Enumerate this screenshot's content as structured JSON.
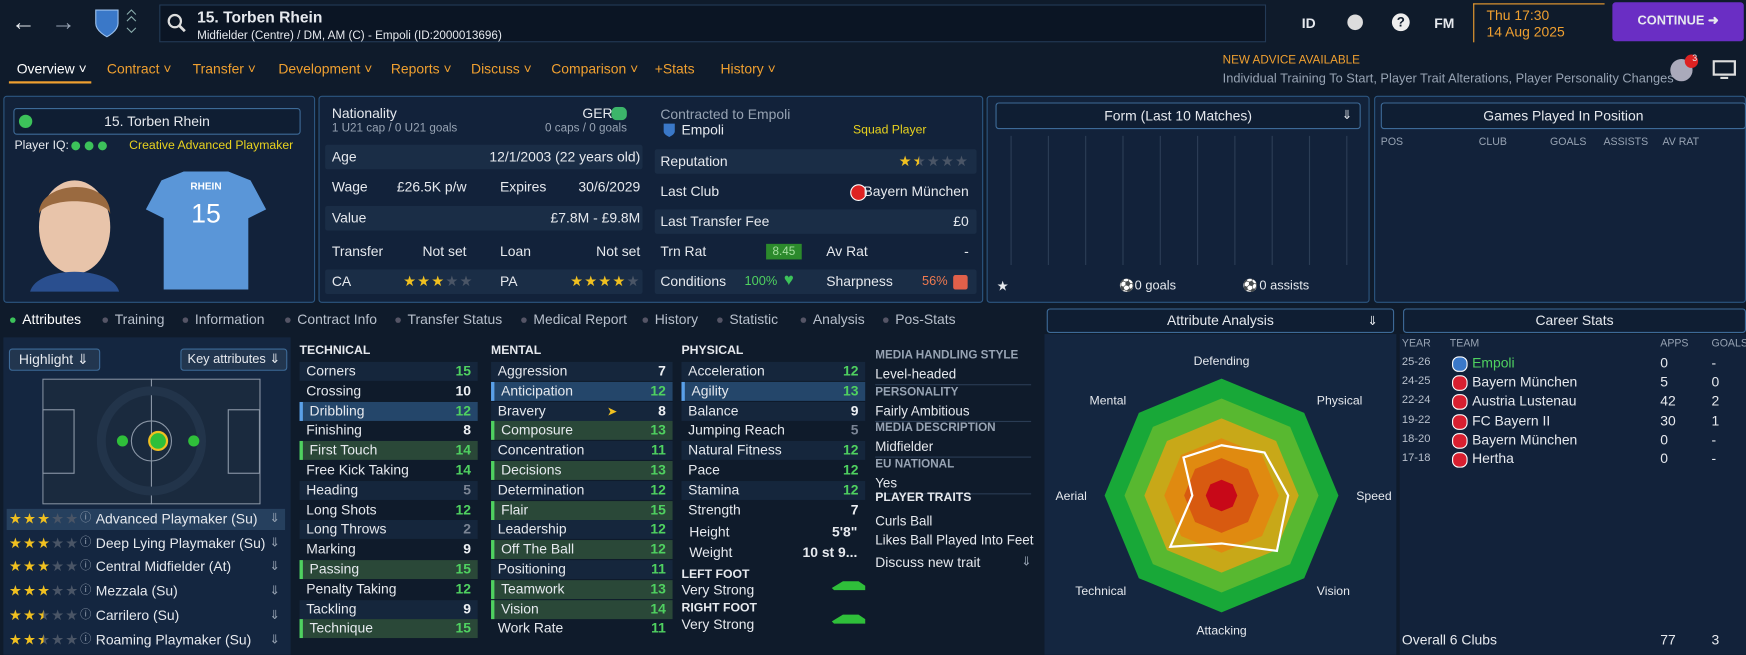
{
  "header": {
    "title": "15. Torben Rhein",
    "subtitle": "Midfielder (Centre) / DM, AM (C) - Empoli (ID:2000013696)",
    "id_button": "ID",
    "fm_button": "FM",
    "time": "Thu 17:30",
    "date": "14 Aug 2025",
    "continue": "CONTINUE",
    "notifications": 3
  },
  "tabs": [
    "Overview",
    "Contract",
    "Transfer",
    "Development",
    "Reports",
    "Discuss",
    "Comparison",
    "+Stats",
    "History"
  ],
  "advice": {
    "title": "NEW ADVICE AVAILABLE",
    "text": "Individual Training To Start, Player Trait Alterations, Player Personality Changes"
  },
  "profile": {
    "name": "15. Torben Rhein",
    "iq_label": "Player IQ:",
    "role": "Creative Advanced Playmaker",
    "shirt_name": "RHEIN",
    "shirt_number": 15
  },
  "details": {
    "nationality_label": "Nationality",
    "nationality": "GER",
    "youth_caps": "1 U21 cap / 0 U21 goals",
    "caps": "0 caps / 0 goals",
    "age_label": "Age",
    "age": "12/1/2003 (22 years old)",
    "wage_label": "Wage",
    "wage": "£26.5K p/w",
    "expires_label": "Expires",
    "expires": "30/6/2029",
    "value_label": "Value",
    "value": "£7.8M - £9.8M",
    "transfer_label": "Transfer",
    "transfer": "Not set",
    "loan_label": "Loan",
    "loan": "Not set",
    "ca_label": "CA",
    "ca_stars": 3,
    "pa_label": "PA",
    "pa_stars": 4
  },
  "contract": {
    "label": "Contracted to Empoli",
    "club": "Empoli",
    "status": "Squad Player",
    "reputation_label": "Reputation",
    "reputation_stars": 1.5,
    "last_club_label": "Last Club",
    "last_club": "Bayern München",
    "fee_label": "Last Transfer Fee",
    "fee": "£0",
    "trn_label": "Trn Rat",
    "trn": 8.45,
    "av_label": "Av Rat",
    "av": "-",
    "conditions_label": "Conditions",
    "conditions": "100%",
    "sharpness_label": "Sharpness",
    "sharpness": "56%"
  },
  "form": {
    "title": "Form (Last 10 Matches)",
    "goals": "0 goals",
    "assists": "0 assists"
  },
  "positions": {
    "title": "Games Played In Position",
    "columns": [
      "POS",
      "CLUB",
      "GOALS",
      "ASSISTS",
      "AV RAT"
    ]
  },
  "subtabs": [
    "Attributes",
    "Training",
    "Information",
    "Contract Info",
    "Transfer Status",
    "Medical Report",
    "History",
    "Statistic",
    "Analysis",
    "Pos-Stats"
  ],
  "roles": {
    "highlight": "Highlight",
    "key": "Key attributes",
    "items": [
      {
        "name": "Advanced Playmaker (Su)",
        "stars": 3
      },
      {
        "name": "Deep Lying Playmaker (Su)",
        "stars": 3
      },
      {
        "name": "Central Midfielder (At)",
        "stars": 3
      },
      {
        "name": "Mezzala (Su)",
        "stars": 3
      },
      {
        "name": "Carrilero (Su)",
        "stars": 2.5
      },
      {
        "name": "Roaming Playmaker (Su)",
        "stars": 2.5
      }
    ]
  },
  "attributes": {
    "technical": {
      "title": "TECHNICAL",
      "items": [
        {
          "name": "Corners",
          "value": 15
        },
        {
          "name": "Crossing",
          "value": 10
        },
        {
          "name": "Dribbling",
          "value": 12,
          "highlight": "focus"
        },
        {
          "name": "Finishing",
          "value": 8
        },
        {
          "name": "First Touch",
          "value": 14,
          "highlight": "key"
        },
        {
          "name": "Free Kick Taking",
          "value": 14
        },
        {
          "name": "Heading",
          "value": 5
        },
        {
          "name": "Long Shots",
          "value": 12
        },
        {
          "name": "Long Throws",
          "value": 2
        },
        {
          "name": "Marking",
          "value": 9
        },
        {
          "name": "Passing",
          "value": 15,
          "highlight": "key"
        },
        {
          "name": "Penalty Taking",
          "value": 12
        },
        {
          "name": "Tackling",
          "value": 9
        },
        {
          "name": "Technique",
          "value": 15,
          "highlight": "key"
        }
      ]
    },
    "mental": {
      "title": "MENTAL",
      "items": [
        {
          "name": "Aggression",
          "value": 7
        },
        {
          "name": "Anticipation",
          "value": 12,
          "highlight": "focus"
        },
        {
          "name": "Bravery",
          "value": 8
        },
        {
          "name": "Composure",
          "value": 13,
          "highlight": "key"
        },
        {
          "name": "Concentration",
          "value": 11
        },
        {
          "name": "Decisions",
          "value": 13,
          "highlight": "key"
        },
        {
          "name": "Determination",
          "value": 12
        },
        {
          "name": "Flair",
          "value": 15,
          "highlight": "key"
        },
        {
          "name": "Leadership",
          "value": 12
        },
        {
          "name": "Off The Ball",
          "value": 12,
          "highlight": "key"
        },
        {
          "name": "Positioning",
          "value": 11
        },
        {
          "name": "Teamwork",
          "value": 13,
          "highlight": "key"
        },
        {
          "name": "Vision",
          "value": 14,
          "highlight": "key"
        },
        {
          "name": "Work Rate",
          "value": 11
        }
      ]
    },
    "physical": {
      "title": "PHYSICAL",
      "items": [
        {
          "name": "Acceleration",
          "value": 12
        },
        {
          "name": "Agility",
          "value": 13,
          "highlight": "focus"
        },
        {
          "name": "Balance",
          "value": 9
        },
        {
          "name": "Jumping Reach",
          "value": 5
        },
        {
          "name": "Natural Fitness",
          "value": 12
        },
        {
          "name": "Pace",
          "value": 12
        },
        {
          "name": "Stamina",
          "value": 12
        },
        {
          "name": "Strength",
          "value": 7
        }
      ],
      "height_label": "Height",
      "height": "5'8\"",
      "weight_label": "Weight",
      "weight": "10 st 9...",
      "left_foot_label": "LEFT FOOT",
      "left_foot": "Very Strong",
      "right_foot_label": "RIGHT FOOT",
      "right_foot": "Very Strong"
    }
  },
  "media": {
    "items": [
      {
        "label": "MEDIA HANDLING STYLE",
        "value": "Level-headed"
      },
      {
        "label": "PERSONALITY",
        "value": "Fairly Ambitious"
      },
      {
        "label": "MEDIA DESCRIPTION",
        "value": "Midfielder"
      },
      {
        "label": "EU NATIONAL",
        "value": "Yes"
      }
    ],
    "traits_label": "PLAYER TRAITS",
    "traits": [
      "Curls Ball",
      "Likes Ball Played Into Feet"
    ],
    "discuss": "Discuss new trait"
  },
  "analysis": {
    "title": "Attribute Analysis",
    "axes": [
      "Defending",
      "Physical",
      "Speed",
      "Vision",
      "Attacking",
      "Technical",
      "Aerial",
      "Mental"
    ],
    "values": [
      0.43,
      0.52,
      0.57,
      0.67,
      0.41,
      0.62,
      0.25,
      0.46
    ],
    "rlim": [
      0,
      1
    ]
  },
  "career": {
    "title": "Career Stats",
    "columns": [
      "YEAR",
      "TEAM",
      "APPS",
      "GOALS"
    ],
    "rows": [
      [
        "25-26",
        "Empoli",
        0,
        "-"
      ],
      [
        "24-25",
        "Bayern München",
        5,
        0
      ],
      [
        "22-24",
        "Austria Lustenau",
        42,
        2
      ],
      [
        "19-22",
        "FC Bayern II",
        30,
        1
      ],
      [
        "18-20",
        "Bayern München",
        0,
        "-"
      ],
      [
        "17-18",
        "Hertha",
        0,
        "-"
      ]
    ],
    "overall_label": "Overall",
    "overall_clubs": "6 Clubs",
    "overall_apps": 77,
    "overall_goals": 3
  }
}
